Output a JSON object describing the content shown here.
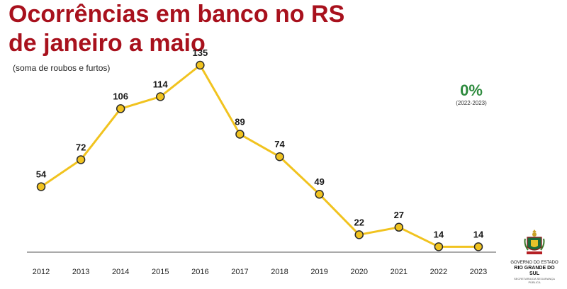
{
  "header": {
    "title_line1": "Ocorrências em banco no RS",
    "title_line2": "de janeiro a maio",
    "subtitle": "(soma de roubos e furtos)"
  },
  "change": {
    "value": "0%",
    "period": "(2022-2023)",
    "color": "#2e8b3e"
  },
  "logo": {
    "line1": "GOVERNO DO ESTADO",
    "line2": "RIO GRANDE DO SUL",
    "line3": "SECRETARIA DA SEGURANÇA PÚBLICA"
  },
  "colors": {
    "title": "#a8111d",
    "line": "#f1c31f",
    "marker_fill": "#f1c31f",
    "marker_stroke": "#2b2b2b",
    "axis": "#555555"
  },
  "chart_data": {
    "type": "line",
    "title": "Ocorrências em banco no RS de janeiro a maio",
    "subtitle": "(soma de roubos e furtos)",
    "categories": [
      "2012",
      "2013",
      "2014",
      "2015",
      "2016",
      "2017",
      "2018",
      "2019",
      "2020",
      "2021",
      "2022",
      "2023"
    ],
    "series": [
      {
        "values": [
          54,
          72,
          106,
          114,
          135,
          89,
          74,
          49,
          22,
          27,
          14,
          14
        ]
      }
    ],
    "ylim": [
      0,
      135
    ],
    "grid": false,
    "legend": "none",
    "data_labels": true
  }
}
